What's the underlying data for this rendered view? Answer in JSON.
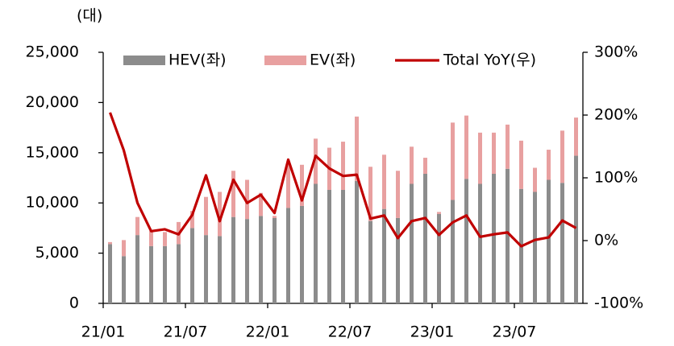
{
  "chart_data": {
    "type": "bar_line",
    "y_unit_label": "(대)",
    "categories": [
      "21/01",
      null,
      null,
      null,
      null,
      null,
      "21/07",
      null,
      null,
      null,
      null,
      null,
      "22/01",
      null,
      null,
      null,
      null,
      null,
      "22/07",
      null,
      null,
      null,
      null,
      null,
      "23/01",
      null,
      null,
      null,
      null,
      null,
      "23/07",
      null,
      null,
      null,
      null
    ],
    "series": [
      {
        "name": "HEV(좌)",
        "color": "#8c8c8c",
        "type": "bar",
        "values": [
          5900,
          4700,
          6800,
          5700,
          5700,
          5900,
          7500,
          6800,
          6700,
          8600,
          8400,
          8700,
          8500,
          9500,
          9700,
          11900,
          11300,
          11300,
          12200,
          8200,
          9400,
          8500,
          11900,
          12900,
          8900,
          10300,
          12400,
          11900,
          12900,
          13400,
          11400,
          11100,
          12300,
          12000,
          14700
        ]
      },
      {
        "name": "EV(좌)",
        "color": "#e8a0a0",
        "type": "bar",
        "values": [
          200,
          1600,
          1800,
          1500,
          1400,
          2200,
          1700,
          3800,
          4400,
          4600,
          3900,
          2300,
          200,
          4400,
          4100,
          4500,
          4200,
          4800,
          6400,
          5400,
          5400,
          4700,
          3700,
          1600,
          200,
          7700,
          6300,
          5100,
          4100,
          4400,
          4800,
          2400,
          3000,
          5200,
          3800
        ]
      },
      {
        "name": "Total YoY(우)",
        "color": "#c00000",
        "type": "line",
        "axis": "y2",
        "values": [
          204,
          144,
          60,
          15,
          18,
          10,
          41,
          104,
          31,
          97,
          60,
          73,
          44,
          129,
          64,
          135,
          115,
          103,
          105,
          35,
          40,
          4,
          31,
          36,
          9,
          29,
          40,
          6,
          10,
          13,
          -9,
          1,
          5,
          32,
          20
        ]
      }
    ],
    "ylim": [
      0,
      25000
    ],
    "yticks": [
      0,
      {
        "value": 5000,
        "label": "5,000"
      },
      {
        "value": 10000,
        "label": "10,000"
      },
      {
        "value": 15000,
        "label": "15,000"
      },
      {
        "value": 20000,
        "label": "20,000"
      },
      {
        "value": 25000,
        "label": "25,000"
      }
    ],
    "y2lim": [
      -100,
      300
    ],
    "y2ticks": [
      {
        "value": -100,
        "label": "-100%"
      },
      {
        "value": 0,
        "label": "0%"
      },
      {
        "value": 100,
        "label": "100%"
      },
      {
        "value": 200,
        "label": "200%"
      },
      {
        "value": 300,
        "label": "300%"
      }
    ],
    "legend": "top"
  }
}
